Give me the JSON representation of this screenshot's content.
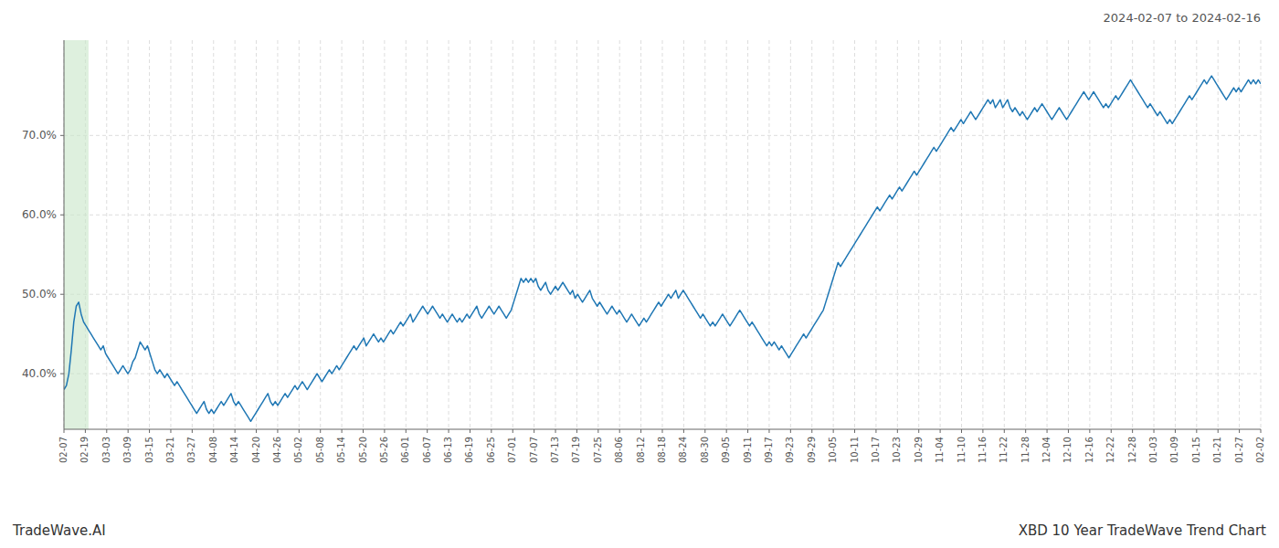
{
  "chart_data": {
    "type": "line",
    "title": "2024-02-07 to 2024-02-16",
    "annotations": [
      "TradeWave.AI",
      "XBD 10 Year TradeWave Trend Chart"
    ],
    "color": "#1f77b4",
    "grid": true,
    "highlight": {
      "from": 0,
      "to": 10,
      "color": "#c8e6c8"
    },
    "xlim": [
      0,
      487
    ],
    "xticks": [
      {
        "value": 0,
        "label": "02-07"
      },
      {
        "value": 8.696429,
        "label": "02-19"
      },
      {
        "value": 17.392857,
        "label": "03-03"
      },
      {
        "value": 26.089286,
        "label": "03-09"
      },
      {
        "value": 34.785714,
        "label": "03-15"
      },
      {
        "value": 43.482143,
        "label": "03-21"
      },
      {
        "value": 52.178571,
        "label": "03-27"
      },
      {
        "value": 60.875,
        "label": "04-08"
      },
      {
        "value": 69.571429,
        "label": "04-14"
      },
      {
        "value": 78.267857,
        "label": "04-20"
      },
      {
        "value": 86.964286,
        "label": "04-26"
      },
      {
        "value": 95.660714,
        "label": "05-02"
      },
      {
        "value": 104.357143,
        "label": "05-08"
      },
      {
        "value": 113.053571,
        "label": "05-14"
      },
      {
        "value": 121.75,
        "label": "05-20"
      },
      {
        "value": 130.446429,
        "label": "05-26"
      },
      {
        "value": 139.142857,
        "label": "06-01"
      },
      {
        "value": 147.839286,
        "label": "06-07"
      },
      {
        "value": 156.535714,
        "label": "06-13"
      },
      {
        "value": 165.232143,
        "label": "06-19"
      },
      {
        "value": 173.928571,
        "label": "06-25"
      },
      {
        "value": 182.625,
        "label": "07-01"
      },
      {
        "value": 191.321429,
        "label": "07-07"
      },
      {
        "value": 200.017857,
        "label": "07-13"
      },
      {
        "value": 208.714286,
        "label": "07-19"
      },
      {
        "value": 217.410714,
        "label": "07-25"
      },
      {
        "value": 226.107143,
        "label": "08-06"
      },
      {
        "value": 234.803571,
        "label": "08-12"
      },
      {
        "value": 243.5,
        "label": "08-18"
      },
      {
        "value": 252.196429,
        "label": "08-24"
      },
      {
        "value": 260.892857,
        "label": "08-30"
      },
      {
        "value": 269.589286,
        "label": "09-05"
      },
      {
        "value": 278.285714,
        "label": "09-11"
      },
      {
        "value": 286.982143,
        "label": "09-17"
      },
      {
        "value": 295.678571,
        "label": "09-23"
      },
      {
        "value": 304.375,
        "label": "09-29"
      },
      {
        "value": 313.071429,
        "label": "10-05"
      },
      {
        "value": 321.767857,
        "label": "10-11"
      },
      {
        "value": 330.464286,
        "label": "10-17"
      },
      {
        "value": 339.160714,
        "label": "10-23"
      },
      {
        "value": 347.857143,
        "label": "10-29"
      },
      {
        "value": 356.553571,
        "label": "11-04"
      },
      {
        "value": 365.25,
        "label": "11-10"
      },
      {
        "value": 373.946429,
        "label": "11-16"
      },
      {
        "value": 382.642857,
        "label": "11-22"
      },
      {
        "value": 391.339286,
        "label": "11-28"
      },
      {
        "value": 400.035714,
        "label": "12-04"
      },
      {
        "value": 408.732143,
        "label": "12-10"
      },
      {
        "value": 417.428571,
        "label": "12-16"
      },
      {
        "value": 426.125,
        "label": "12-22"
      },
      {
        "value": 434.821429,
        "label": "12-28"
      },
      {
        "value": 443.517857,
        "label": "01-03"
      },
      {
        "value": 452.214286,
        "label": "01-09"
      },
      {
        "value": 460.910714,
        "label": "01-15"
      },
      {
        "value": 469.607143,
        "label": "01-21"
      },
      {
        "value": 478.303571,
        "label": "01-27"
      },
      {
        "value": 487,
        "label": "02-02"
      }
    ],
    "ylim": [
      33,
      82
    ],
    "yticks": [
      {
        "value": 40,
        "label": "40.0%"
      },
      {
        "value": 50,
        "label": "50.0%"
      },
      {
        "value": 60,
        "label": "60.0%"
      },
      {
        "value": 70,
        "label": "70.0%"
      }
    ],
    "values": [
      38.0,
      38.5,
      40.0,
      43.0,
      46.5,
      48.5,
      49.0,
      47.5,
      46.5,
      46.0,
      45.5,
      45.0,
      44.5,
      44.0,
      43.5,
      43.0,
      43.5,
      42.5,
      42.0,
      41.5,
      41.0,
      40.5,
      40.0,
      40.5,
      41.0,
      40.5,
      40.0,
      40.5,
      41.5,
      42.0,
      43.0,
      44.0,
      43.5,
      43.0,
      43.5,
      42.5,
      41.5,
      40.5,
      40.0,
      40.5,
      40.0,
      39.5,
      40.0,
      39.5,
      39.0,
      38.5,
      39.0,
      38.5,
      38.0,
      37.5,
      37.0,
      36.5,
      36.0,
      35.5,
      35.0,
      35.5,
      36.0,
      36.5,
      35.5,
      35.0,
      35.5,
      35.0,
      35.5,
      36.0,
      36.5,
      36.0,
      36.5,
      37.0,
      37.5,
      36.5,
      36.0,
      36.5,
      36.0,
      35.5,
      35.0,
      34.5,
      34.0,
      34.5,
      35.0,
      35.5,
      36.0,
      36.5,
      37.0,
      37.5,
      36.5,
      36.0,
      36.5,
      36.0,
      36.5,
      37.0,
      37.5,
      37.0,
      37.5,
      38.0,
      38.5,
      38.0,
      38.5,
      39.0,
      38.5,
      38.0,
      38.5,
      39.0,
      39.5,
      40.0,
      39.5,
      39.0,
      39.5,
      40.0,
      40.5,
      40.0,
      40.5,
      41.0,
      40.5,
      41.0,
      41.5,
      42.0,
      42.5,
      43.0,
      43.5,
      43.0,
      43.5,
      44.0,
      44.5,
      43.5,
      44.0,
      44.5,
      45.0,
      44.5,
      44.0,
      44.5,
      44.0,
      44.5,
      45.0,
      45.5,
      45.0,
      45.5,
      46.0,
      46.5,
      46.0,
      46.5,
      47.0,
      47.5,
      46.5,
      47.0,
      47.5,
      48.0,
      48.5,
      48.0,
      47.5,
      48.0,
      48.5,
      48.0,
      47.5,
      47.0,
      47.5,
      47.0,
      46.5,
      47.0,
      47.5,
      47.0,
      46.5,
      47.0,
      46.5,
      47.0,
      47.5,
      47.0,
      47.5,
      48.0,
      48.5,
      47.5,
      47.0,
      47.5,
      48.0,
      48.5,
      48.0,
      47.5,
      48.0,
      48.5,
      48.0,
      47.5,
      47.0,
      47.5,
      48.0,
      49.0,
      50.0,
      51.0,
      52.0,
      51.5,
      52.0,
      51.5,
      52.0,
      51.5,
      52.0,
      51.0,
      50.5,
      51.0,
      51.5,
      50.5,
      50.0,
      50.5,
      51.0,
      50.5,
      51.0,
      51.5,
      51.0,
      50.5,
      50.0,
      50.5,
      49.5,
      50.0,
      49.5,
      49.0,
      49.5,
      50.0,
      50.5,
      49.5,
      49.0,
      48.5,
      49.0,
      48.5,
      48.0,
      47.5,
      48.0,
      48.5,
      48.0,
      47.5,
      48.0,
      47.5,
      47.0,
      46.5,
      47.0,
      47.5,
      47.0,
      46.5,
      46.0,
      46.5,
      47.0,
      46.5,
      47.0,
      47.5,
      48.0,
      48.5,
      49.0,
      48.5,
      49.0,
      49.5,
      50.0,
      49.5,
      50.0,
      50.5,
      49.5,
      50.0,
      50.5,
      50.0,
      49.5,
      49.0,
      48.5,
      48.0,
      47.5,
      47.0,
      47.5,
      47.0,
      46.5,
      46.0,
      46.5,
      46.0,
      46.5,
      47.0,
      47.5,
      47.0,
      46.5,
      46.0,
      46.5,
      47.0,
      47.5,
      48.0,
      47.5,
      47.0,
      46.5,
      46.0,
      46.5,
      46.0,
      45.5,
      45.0,
      44.5,
      44.0,
      43.5,
      44.0,
      43.5,
      44.0,
      43.5,
      43.0,
      43.5,
      43.0,
      42.5,
      42.0,
      42.5,
      43.0,
      43.5,
      44.0,
      44.5,
      45.0,
      44.5,
      45.0,
      45.5,
      46.0,
      46.5,
      47.0,
      47.5,
      48.0,
      49.0,
      50.0,
      51.0,
      52.0,
      53.0,
      54.0,
      53.5,
      54.0,
      54.5,
      55.0,
      55.5,
      56.0,
      56.5,
      57.0,
      57.5,
      58.0,
      58.5,
      59.0,
      59.5,
      60.0,
      60.5,
      61.0,
      60.5,
      61.0,
      61.5,
      62.0,
      62.5,
      62.0,
      62.5,
      63.0,
      63.5,
      63.0,
      63.5,
      64.0,
      64.5,
      65.0,
      65.5,
      65.0,
      65.5,
      66.0,
      66.5,
      67.0,
      67.5,
      68.0,
      68.5,
      68.0,
      68.5,
      69.0,
      69.5,
      70.0,
      70.5,
      71.0,
      70.5,
      71.0,
      71.5,
      72.0,
      71.5,
      72.0,
      72.5,
      73.0,
      72.5,
      72.0,
      72.5,
      73.0,
      73.5,
      74.0,
      74.5,
      74.0,
      74.5,
      73.5,
      74.0,
      74.5,
      73.5,
      74.0,
      74.5,
      73.5,
      73.0,
      73.5,
      73.0,
      72.5,
      73.0,
      72.5,
      72.0,
      72.5,
      73.0,
      73.5,
      73.0,
      73.5,
      74.0,
      73.5,
      73.0,
      72.5,
      72.0,
      72.5,
      73.0,
      73.5,
      73.0,
      72.5,
      72.0,
      72.5,
      73.0,
      73.5,
      74.0,
      74.5,
      75.0,
      75.5,
      75.0,
      74.5,
      75.0,
      75.5,
      75.0,
      74.5,
      74.0,
      73.5,
      74.0,
      73.5,
      74.0,
      74.5,
      75.0,
      74.5,
      75.0,
      75.5,
      76.0,
      76.5,
      77.0,
      76.5,
      76.0,
      75.5,
      75.0,
      74.5,
      74.0,
      73.5,
      74.0,
      73.5,
      73.0,
      72.5,
      73.0,
      72.5,
      72.0,
      71.5,
      72.0,
      71.5,
      72.0,
      72.5,
      73.0,
      73.5,
      74.0,
      74.5,
      75.0,
      74.5,
      75.0,
      75.5,
      76.0,
      76.5,
      77.0,
      76.5,
      77.0,
      77.5,
      77.0,
      76.5,
      76.0,
      75.5,
      75.0,
      74.5,
      75.0,
      75.5,
      76.0,
      75.5,
      76.0,
      75.5,
      76.0,
      76.5,
      77.0,
      76.5,
      77.0,
      76.5,
      77.0,
      76.5
    ]
  }
}
